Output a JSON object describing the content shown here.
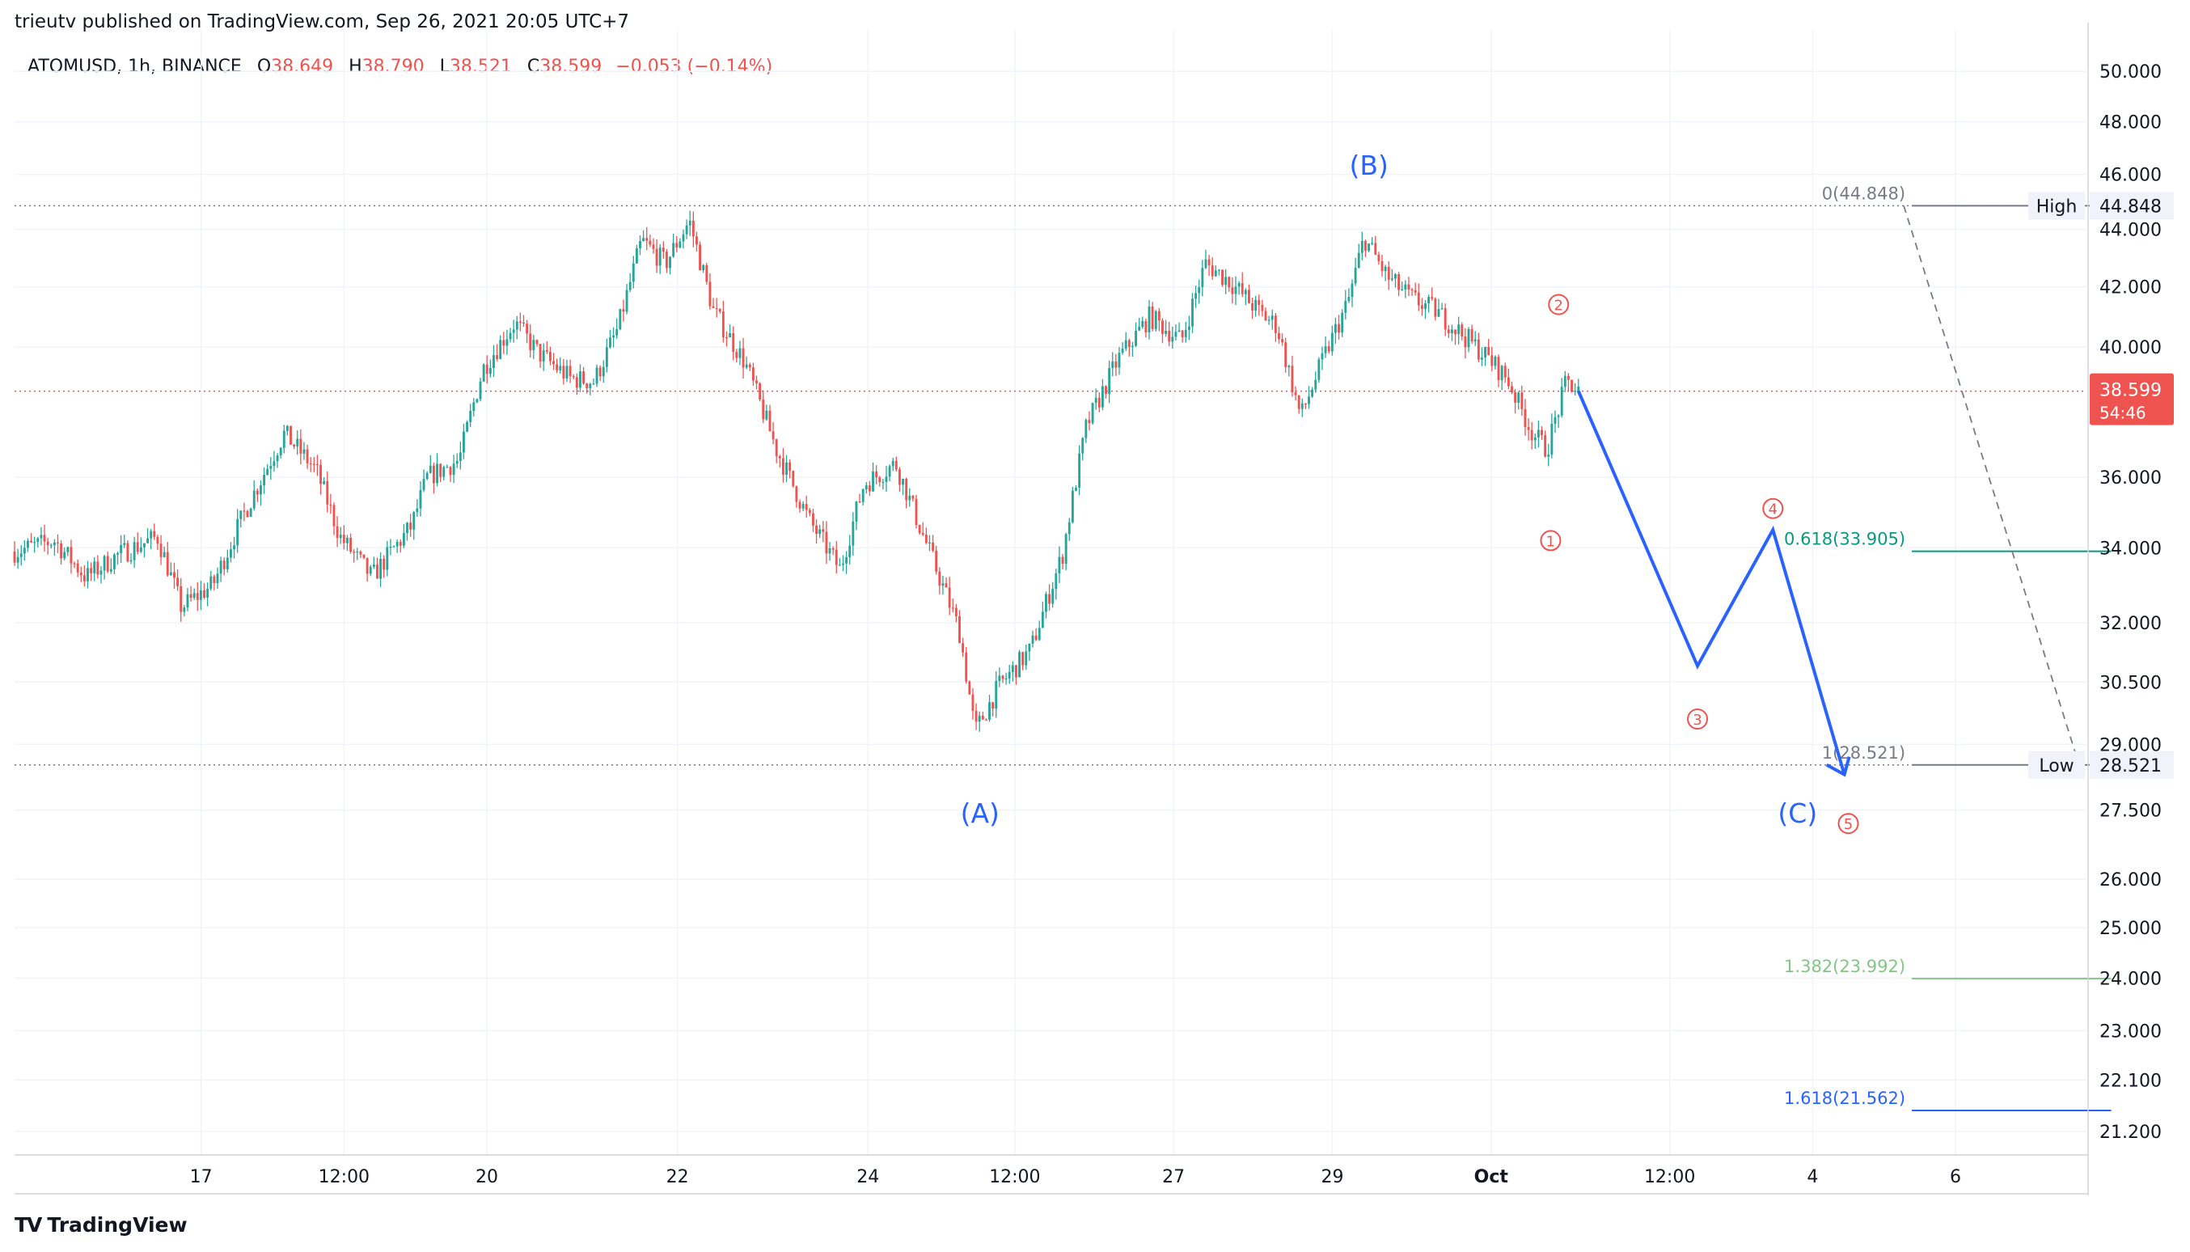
{
  "header": {
    "published": "trieutv published on TradingView.com, Sep 26, 2021 20:05 UTC+7"
  },
  "legend": {
    "symbol": "ATOMUSD, 1h, BINANCE",
    "o_label": "O",
    "o": "38.649",
    "h_label": "H",
    "h": "38.790",
    "l_label": "L",
    "l": "38.521",
    "c_label": "C",
    "c": "38.599",
    "change": "−0.053 (−0.14%)"
  },
  "footer": {
    "brand": "TradingView",
    "logo": "TV"
  },
  "colors": {
    "up": "#26a69a",
    "down": "#ef5350",
    "wave": "#2962ff",
    "fib0": "#787b86",
    "fib618": "#089981",
    "fib1382": "#81c784",
    "fib1618": "#2962ff"
  },
  "chart_data": {
    "type": "candlestick",
    "symbol": "ATOMUSD",
    "interval": "1h",
    "exchange": "BINANCE",
    "scale": "log",
    "ylim": [
      20.8,
      51.0
    ],
    "y_ticks": [
      "50.000",
      "48.000",
      "46.000",
      "44.000",
      "42.000",
      "40.000",
      "36.000",
      "34.000",
      "32.000",
      "30.500",
      "29.000",
      "27.500",
      "26.000",
      "25.000",
      "24.000",
      "23.000",
      "22.100",
      "21.200"
    ],
    "x_ticks": [
      "17",
      "12:00",
      "20",
      "22",
      "24",
      "12:00",
      "27",
      "29",
      "Oct",
      "12:00",
      "4",
      "6"
    ],
    "last_price": {
      "value": "38.599",
      "countdown": "54:46"
    },
    "high_label": {
      "label": "High",
      "value": "44.848"
    },
    "low_label": {
      "label": "Low",
      "value": "28.521"
    },
    "price_path": [
      {
        "d": 0,
        "p": 33.9
      },
      {
        "d": 0.5,
        "p": 34.2
      },
      {
        "d": 0.9,
        "p": 33.2
      },
      {
        "d": 1.3,
        "p": 33.8
      },
      {
        "d": 1.8,
        "p": 34.3
      },
      {
        "d": 2.1,
        "p": 32.4
      },
      {
        "d": 2.5,
        "p": 33.0
      },
      {
        "d": 2.9,
        "p": 35.0
      },
      {
        "d": 3.4,
        "p": 37.3
      },
      {
        "d": 3.8,
        "p": 36.2
      },
      {
        "d": 4.1,
        "p": 34.3
      },
      {
        "d": 4.5,
        "p": 33.2
      },
      {
        "d": 5.0,
        "p": 34.6
      },
      {
        "d": 5.2,
        "p": 36.0
      },
      {
        "d": 5.6,
        "p": 36.5
      },
      {
        "d": 5.9,
        "p": 39.3
      },
      {
        "d": 6.3,
        "p": 40.8
      },
      {
        "d": 6.6,
        "p": 39.8
      },
      {
        "d": 7.0,
        "p": 39.0
      },
      {
        "d": 7.3,
        "p": 38.9
      },
      {
        "d": 7.6,
        "p": 40.6
      },
      {
        "d": 7.9,
        "p": 43.6
      },
      {
        "d": 8.2,
        "p": 42.8
      },
      {
        "d": 8.5,
        "p": 44.3
      },
      {
        "d": 8.8,
        "p": 41.2
      },
      {
        "d": 9.2,
        "p": 39.5
      },
      {
        "d": 9.6,
        "p": 36.8
      },
      {
        "d": 10.0,
        "p": 34.8
      },
      {
        "d": 10.4,
        "p": 33.4
      },
      {
        "d": 10.7,
        "p": 35.8
      },
      {
        "d": 11.1,
        "p": 36.4
      },
      {
        "d": 11.4,
        "p": 34.6
      },
      {
        "d": 11.9,
        "p": 31.8
      },
      {
        "d": 12.1,
        "p": 29.3
      },
      {
        "d": 12.4,
        "p": 30.4
      },
      {
        "d": 12.8,
        "p": 31.3
      },
      {
        "d": 13.2,
        "p": 33.8
      },
      {
        "d": 13.5,
        "p": 37.5
      },
      {
        "d": 13.9,
        "p": 39.6
      },
      {
        "d": 14.3,
        "p": 41.0
      },
      {
        "d": 14.7,
        "p": 40.2
      },
      {
        "d": 15.0,
        "p": 42.8
      },
      {
        "d": 15.3,
        "p": 42.2
      },
      {
        "d": 15.7,
        "p": 41.1
      },
      {
        "d": 15.9,
        "p": 40.7
      },
      {
        "d": 16.2,
        "p": 37.8
      },
      {
        "d": 16.5,
        "p": 39.7
      },
      {
        "d": 16.8,
        "p": 41.5
      },
      {
        "d": 17.0,
        "p": 43.7
      },
      {
        "d": 17.3,
        "p": 42.3
      },
      {
        "d": 17.6,
        "p": 41.6
      },
      {
        "d": 17.9,
        "p": 41.2
      },
      {
        "d": 18.2,
        "p": 40.5
      },
      {
        "d": 18.5,
        "p": 39.8
      },
      {
        "d": 18.8,
        "p": 39.0
      },
      {
        "d": 19.1,
        "p": 37.4
      },
      {
        "d": 19.3,
        "p": 36.8
      },
      {
        "d": 19.55,
        "p": 38.9
      },
      {
        "d": 19.7,
        "p": 38.6
      }
    ],
    "waves": [
      {
        "label": "(A)",
        "d": 12.1,
        "p": 28.5,
        "pos": "below"
      },
      {
        "label": "(B)",
        "d": 17.0,
        "p": 44.8,
        "pos": "above"
      },
      {
        "label": "(C)",
        "d": 22.4,
        "p": 28.5,
        "pos": "below"
      }
    ],
    "projection": [
      {
        "d": 19.7,
        "p": 38.6
      },
      {
        "d": 21.2,
        "p": 30.9
      },
      {
        "d": 22.15,
        "p": 34.5
      },
      {
        "d": 23.05,
        "p": 28.3
      }
    ],
    "projection_end_arrow": true,
    "subwave_labels": [
      {
        "label": "1",
        "d": 19.35,
        "p": 34.2
      },
      {
        "label": "2",
        "d": 19.45,
        "p": 41.4
      },
      {
        "label": "3",
        "d": 21.2,
        "p": 29.6
      },
      {
        "label": "4",
        "d": 22.15,
        "p": 35.1
      },
      {
        "label": "5",
        "d": 23.1,
        "p": 27.2
      }
    ],
    "fibonacci": [
      {
        "ratio": "0",
        "value": "44.848",
        "p": 44.848
      },
      {
        "ratio": "0.618",
        "value": "33.905",
        "p": 33.905
      },
      {
        "ratio": "1",
        "value": "28.521",
        "p": 28.521
      },
      {
        "ratio": "1.382",
        "value": "23.992",
        "p": 23.992
      },
      {
        "ratio": "1.618",
        "value": "21.562",
        "p": 21.562
      }
    ],
    "fib_x_range": [
      23.9,
      25.8
    ],
    "fib_trend_line": {
      "from": {
        "d": 23.9,
        "p": 44.848
      },
      "to": {
        "d": 25.6,
        "p": 28.521
      }
    }
  }
}
